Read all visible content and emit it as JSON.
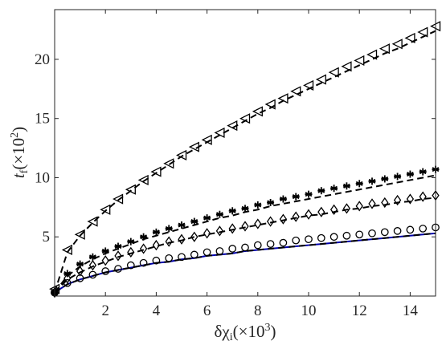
{
  "chart_data": {
    "type": "line",
    "xlabel": "δχ_i(×10^3)",
    "ylabel": "t_f(×10^2)",
    "xlim": [
      0,
      15
    ],
    "ylim": [
      0,
      24.2
    ],
    "xticks": [
      2,
      4,
      6,
      8,
      10,
      12,
      14
    ],
    "yticks": [
      5,
      10,
      15,
      20
    ],
    "grid": false,
    "legend": "none",
    "colors": {
      "markers": "#000000",
      "dashed": "#000000",
      "solid": "#0000aa",
      "axis": "#262626"
    },
    "marker_x": [
      0,
      0.5,
      1,
      1.5,
      2,
      2.5,
      3,
      3.5,
      4,
      4.5,
      5,
      5.5,
      6,
      6.5,
      7,
      7.5,
      8,
      8.5,
      9,
      9.5,
      10,
      10.5,
      11,
      11.5,
      12,
      12.5,
      13,
      13.5,
      14,
      14.5,
      15
    ],
    "series": [
      {
        "marker": "triangle-left",
        "values": [
          0.6,
          3.9,
          5.2,
          6.3,
          7.3,
          8.2,
          9.0,
          9.8,
          10.5,
          11.2,
          11.9,
          12.6,
          13.2,
          13.8,
          14.4,
          15.0,
          15.6,
          16.2,
          16.7,
          17.3,
          17.8,
          18.3,
          18.9,
          19.4,
          19.9,
          20.4,
          20.9,
          21.3,
          21.8,
          22.3,
          22.8
        ],
        "fit": [
          0.3,
          3.7,
          5.1,
          6.2,
          7.2,
          8.1,
          8.9,
          9.7,
          10.4,
          11.1,
          11.8,
          12.4,
          13.0,
          13.6,
          14.2,
          14.8,
          15.4,
          15.9,
          16.5,
          17.0,
          17.5,
          18.0,
          18.5,
          19.0,
          19.5,
          20.0,
          20.5,
          20.9,
          21.4,
          21.9,
          22.4
        ]
      },
      {
        "marker": "asterisk",
        "values": [
          0.4,
          1.9,
          2.7,
          3.3,
          3.8,
          4.2,
          4.6,
          5.0,
          5.4,
          5.7,
          6.0,
          6.3,
          6.6,
          6.9,
          7.2,
          7.4,
          7.7,
          7.9,
          8.2,
          8.4,
          8.6,
          8.9,
          9.1,
          9.3,
          9.5,
          9.7,
          9.9,
          10.1,
          10.3,
          10.5,
          10.7
        ],
        "fit": [
          0.3,
          1.7,
          2.5,
          3.1,
          3.6,
          4.0,
          4.4,
          4.8,
          5.1,
          5.4,
          5.7,
          6.0,
          6.3,
          6.6,
          6.8,
          7.1,
          7.3,
          7.6,
          7.8,
          8.0,
          8.2,
          8.4,
          8.6,
          8.8,
          9.0,
          9.2,
          9.4,
          9.6,
          9.8,
          10.0,
          10.2
        ]
      },
      {
        "marker": "diamond",
        "values": [
          0.3,
          1.5,
          2.1,
          2.6,
          3.0,
          3.4,
          3.7,
          4.0,
          4.3,
          4.6,
          4.8,
          5.0,
          5.3,
          5.5,
          5.7,
          5.9,
          6.1,
          6.3,
          6.5,
          6.7,
          6.9,
          7.1,
          7.3,
          7.4,
          7.6,
          7.8,
          7.9,
          8.1,
          8.2,
          8.4,
          8.5
        ],
        "fit": [
          0.3,
          1.4,
          2.0,
          2.5,
          2.9,
          3.3,
          3.6,
          3.9,
          4.2,
          4.5,
          4.7,
          5.0,
          5.2,
          5.4,
          5.6,
          5.8,
          6.0,
          6.2,
          6.4,
          6.6,
          6.8,
          6.9,
          7.1,
          7.3,
          7.4,
          7.6,
          7.7,
          7.9,
          8.0,
          8.2,
          8.3
        ]
      },
      {
        "marker": "circle",
        "values": [
          0.3,
          1.1,
          1.5,
          1.8,
          2.1,
          2.3,
          2.6,
          2.8,
          3.0,
          3.2,
          3.3,
          3.5,
          3.7,
          3.8,
          4.0,
          4.1,
          4.3,
          4.4,
          4.5,
          4.7,
          4.8,
          4.9,
          5.0,
          5.1,
          5.2,
          5.3,
          5.4,
          5.5,
          5.6,
          5.7,
          5.8
        ],
        "fit": [
          0.3,
          1.0,
          1.4,
          1.7,
          2.0,
          2.2,
          2.4,
          2.6,
          2.8,
          2.9,
          3.1,
          3.2,
          3.4,
          3.5,
          3.6,
          3.8,
          3.9,
          4.0,
          4.1,
          4.2,
          4.3,
          4.4,
          4.5,
          4.6,
          4.7,
          4.8,
          4.9,
          5.0,
          5.1,
          5.2,
          5.3
        ]
      }
    ]
  }
}
